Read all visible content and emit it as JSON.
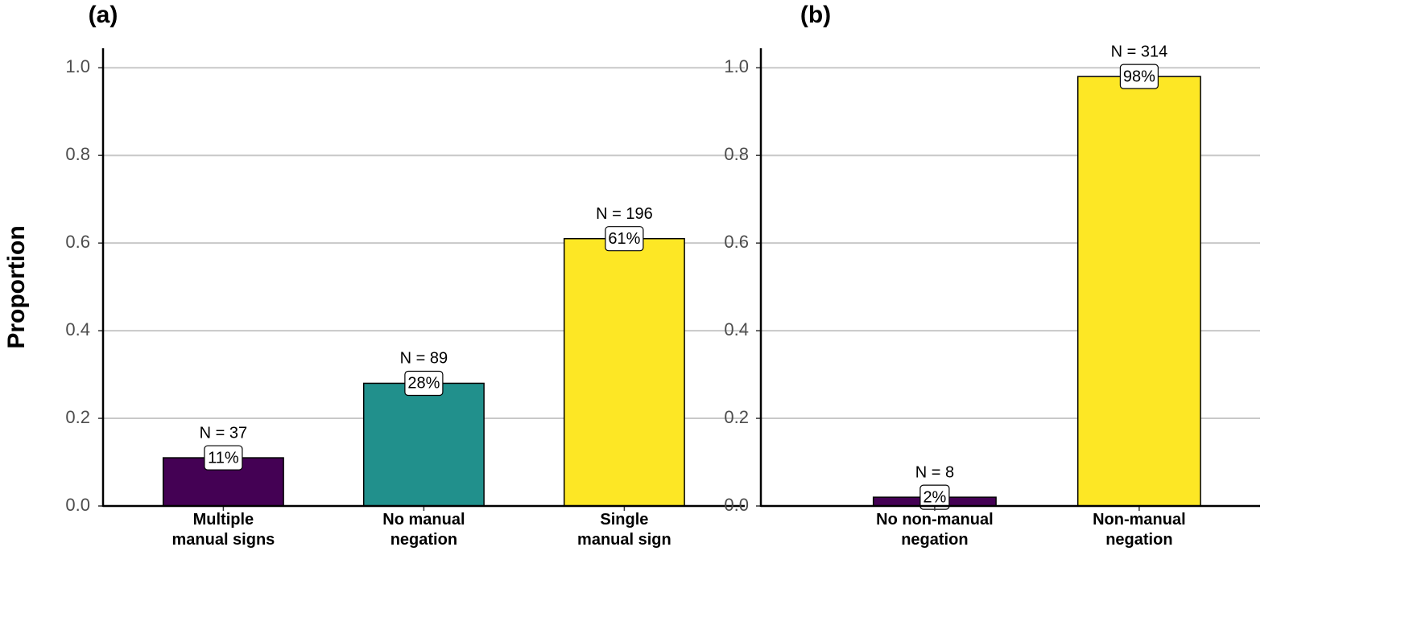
{
  "chart_data": [
    {
      "type": "bar",
      "title": "(a)",
      "y_label": "Proportion",
      "categories": [
        "Multiple\nmanual signs",
        "No manual\nnegation",
        "Single\nmanual sign"
      ],
      "values": [
        0.11,
        0.28,
        0.61
      ],
      "value_labels": [
        "11%",
        "28%",
        "61%"
      ],
      "annotations": [
        "N = 37",
        "N = 89",
        "N = 196"
      ],
      "colors": [
        "#440154",
        "#21908c",
        "#fde725"
      ],
      "ylim": [
        0,
        1.05
      ],
      "yticks": [
        {
          "value": 0,
          "label": "0.0"
        },
        0.2,
        0.4,
        0.6,
        0.8,
        {
          "value": 1,
          "label": "1.0"
        }
      ],
      "grid": true
    },
    {
      "type": "bar",
      "title": "(b)",
      "categories": [
        "No non-manual\nnegation",
        "Non-manual\nnegation"
      ],
      "values": [
        0.02,
        0.98
      ],
      "value_labels": [
        "2%",
        "98%"
      ],
      "annotations": [
        "N = 8",
        "N = 314"
      ],
      "colors": [
        "#440154",
        "#fde725"
      ],
      "ylim": [
        0,
        1.05
      ],
      "yticks": [
        {
          "value": 0,
          "label": "0.0"
        },
        0.2,
        0.4,
        0.6,
        0.8,
        {
          "value": 1,
          "label": "1.0"
        }
      ],
      "grid": true
    }
  ]
}
